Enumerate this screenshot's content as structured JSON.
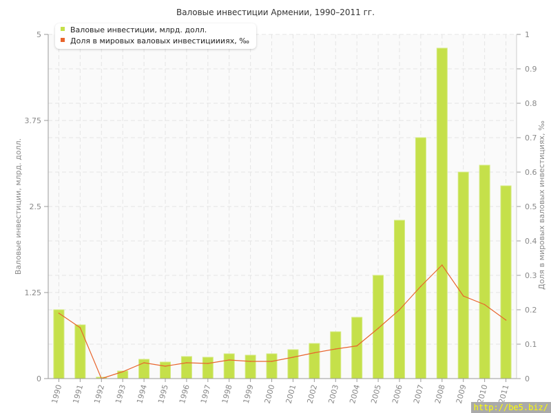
{
  "chart_data": {
    "type": "bar+line",
    "title": "Валовые инвестиции Армении, 1990–2011 гг.",
    "ylabel": "Валовые инвестиции, млрд. долл.",
    "y2label": "Доля в мировых валовых инвестициях, ‰",
    "ylim": [
      0,
      5
    ],
    "y2lim": [
      0,
      1
    ],
    "yticks": [
      "0",
      "1.25",
      "2.5",
      "3.75",
      "5"
    ],
    "y2ticks": [
      "0",
      "0.1",
      "0.2",
      "0.3",
      "0.4",
      "0.5",
      "0.6",
      "0.7",
      "0.8",
      "0.9",
      "1"
    ],
    "grid": true,
    "legend_placement": "top-left",
    "categories": [
      "1990",
      "1991",
      "1992",
      "1993",
      "1994",
      "1995",
      "1996",
      "1997",
      "1998",
      "1999",
      "2000",
      "2001",
      "2002",
      "2003",
      "2004",
      "2005",
      "2006",
      "2007",
      "2008",
      "2009",
      "2010",
      "2011"
    ],
    "series": [
      {
        "name": "Валовые инвестиции, млрд. долл.",
        "type": "bar",
        "axis": "left",
        "color": "#c5e04a",
        "values": [
          1.0,
          0.78,
          0.02,
          0.11,
          0.28,
          0.24,
          0.32,
          0.31,
          0.36,
          0.34,
          0.36,
          0.42,
          0.51,
          0.68,
          0.89,
          1.5,
          2.3,
          3.5,
          4.8,
          3.0,
          3.1,
          2.8
        ]
      },
      {
        "name": "Доля в мировых валовых инвестициииях, ‰",
        "type": "line",
        "axis": "right",
        "color": "#e8642c",
        "values": [
          0.19,
          0.148,
          0.0,
          0.02,
          0.046,
          0.036,
          0.046,
          0.044,
          0.054,
          0.05,
          0.05,
          0.062,
          0.075,
          0.086,
          0.095,
          0.146,
          0.2,
          0.268,
          0.33,
          0.24,
          0.215,
          0.17
        ]
      }
    ]
  },
  "watermark": "http://be5.biz/"
}
